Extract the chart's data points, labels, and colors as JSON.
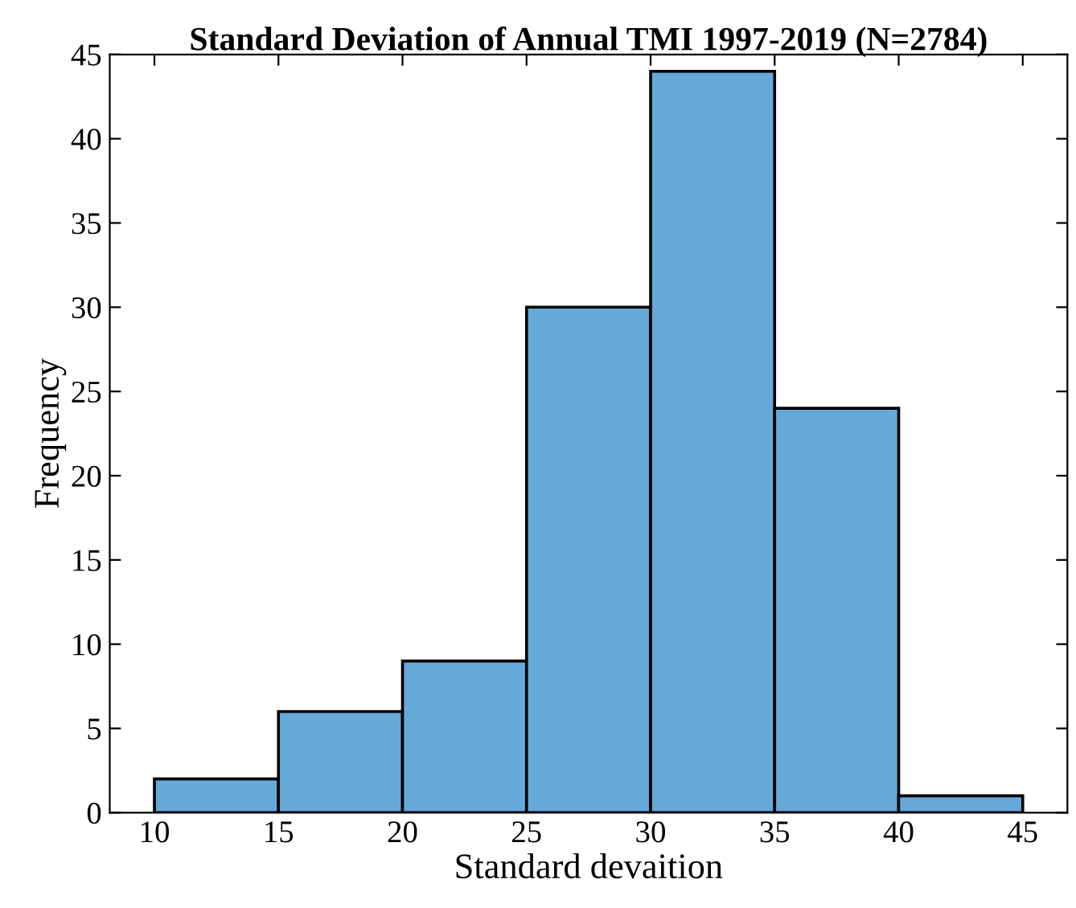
{
  "chart_data": {
    "type": "histogram",
    "title": "Standard Deviation of Annual TMI 1997-2019 (N=2784)",
    "xlabel": "Standard devaition",
    "ylabel": "Frequency",
    "bins": [
      10,
      15,
      20,
      25,
      30,
      35,
      40,
      45
    ],
    "values": [
      2,
      6,
      9,
      30,
      44,
      24,
      1
    ],
    "color": "#65a9d8",
    "xlim": [
      8.2,
      46.8
    ],
    "ylim": [
      0,
      45
    ],
    "xticks": [
      10,
      15,
      20,
      25,
      30,
      35,
      40,
      45
    ],
    "yticks": [
      0,
      5,
      10,
      15,
      20,
      25,
      30,
      35,
      40,
      45
    ],
    "grid": false
  }
}
